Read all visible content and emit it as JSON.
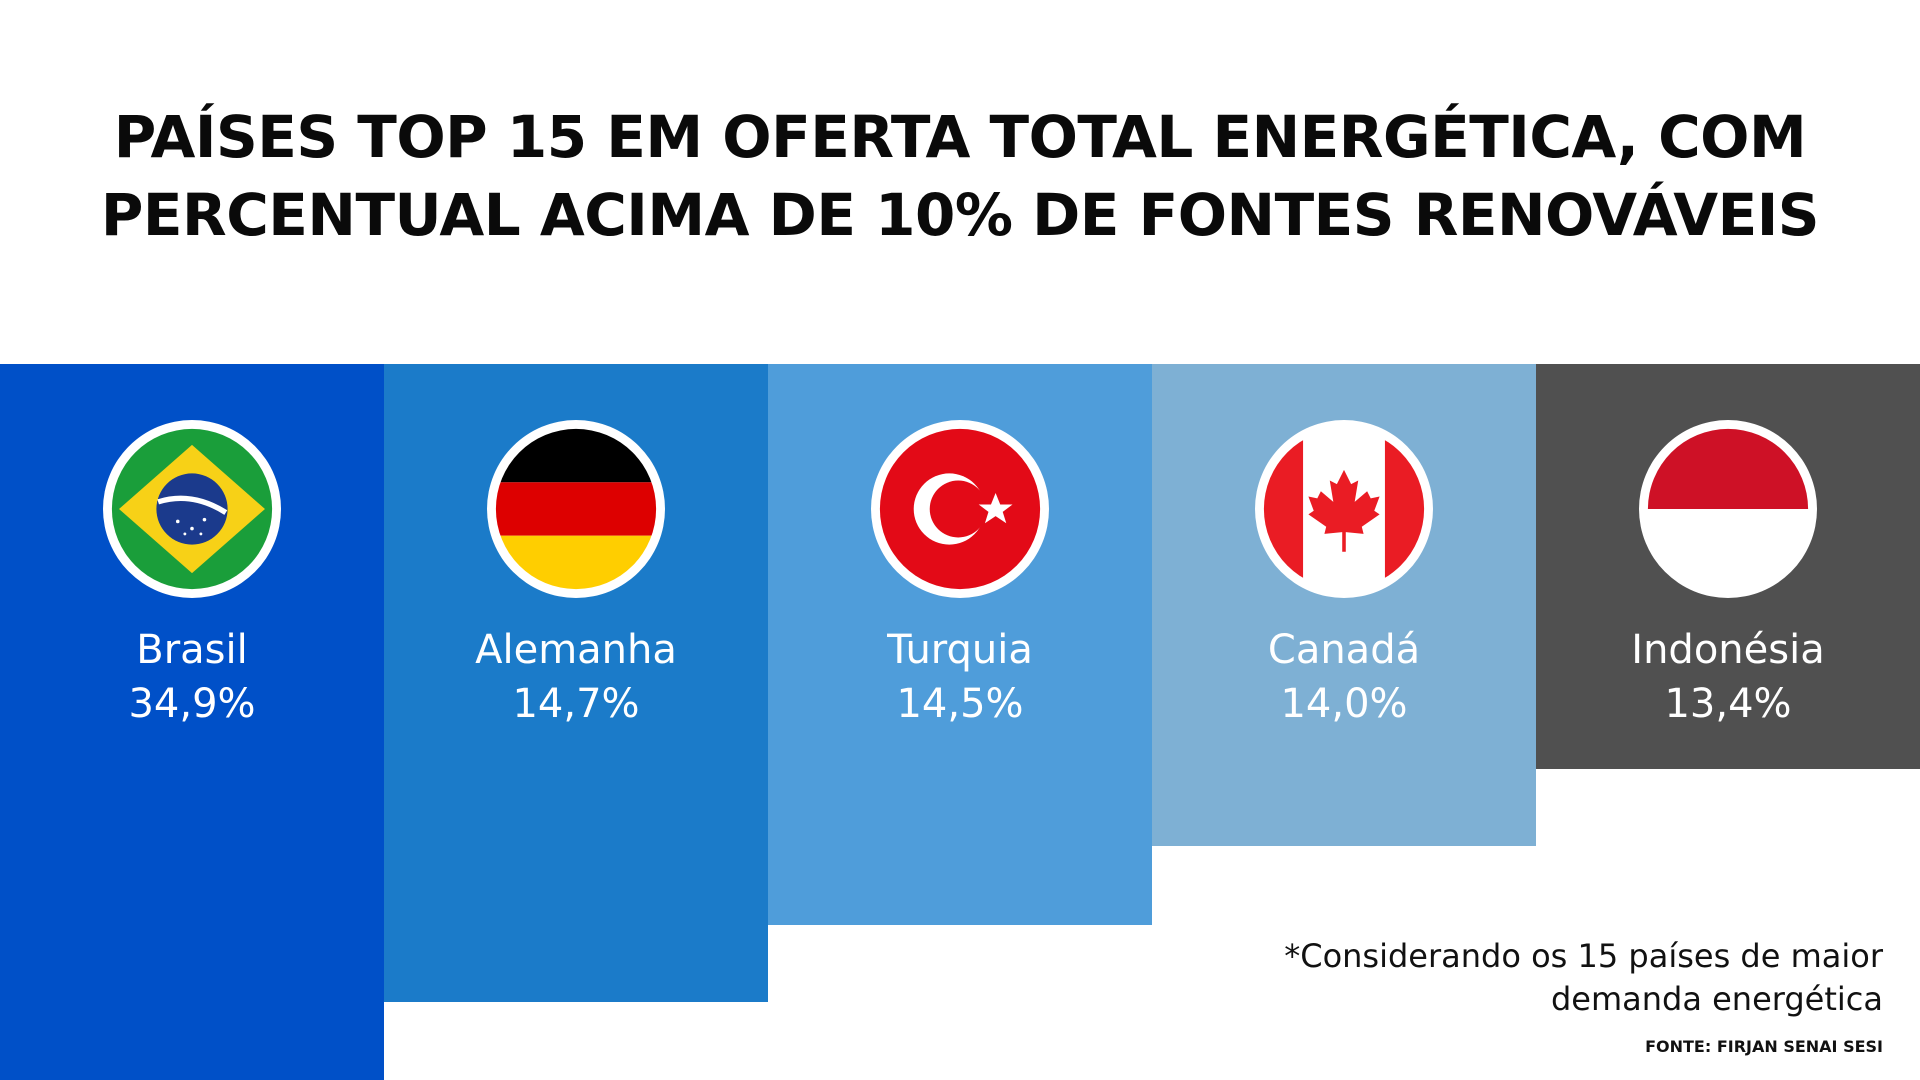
{
  "title_line1": "PAÍSES TOP 15 EM OFERTA TOTAL ENERGÉTICA, COM",
  "title_line2": "PERCENTUAL ACIMA DE 10% DE FONTES RENOVÁVEIS",
  "footnote_line1": "*Considerando os 15 países de maior",
  "footnote_line2": "demanda energética",
  "source": "FONTE: FIRJAN SENAI SESI",
  "chart_data": {
    "type": "bar",
    "title": "PAÍSES TOP 15 EM OFERTA TOTAL ENERGÉTICA, COM PERCENTUAL ACIMA DE 10% DE FONTES RENOVÁVEIS",
    "categories": [
      "Brasil",
      "Alemanha",
      "Turquia",
      "Canadá",
      "Indonésia"
    ],
    "values": [
      34.9,
      14.7,
      14.5,
      14.0,
      13.4
    ],
    "labels": [
      "34,9%",
      "14,7%",
      "14,5%",
      "14,0%",
      "13,4%"
    ],
    "flags": [
      "brazil-flag-icon",
      "germany-flag-icon",
      "turkey-flag-icon",
      "canada-flag-icon",
      "indonesia-flag-icon"
    ],
    "colors": [
      "#0050c8",
      "#1b7bc9",
      "#4f9dda",
      "#7eb0d4",
      "#505050"
    ]
  }
}
